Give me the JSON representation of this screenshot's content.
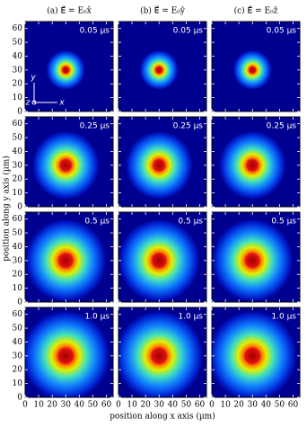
{
  "chart_data": {
    "type": "image-grid",
    "columns": [
      "(a) E⃗ = E₀x̂",
      "(b) E⃗ = E₀ŷ",
      "(c) E⃗ = E₀ẑ"
    ],
    "rows": [
      "0.05 µs",
      "0.25 µs",
      "0.5 µs",
      "1.0 µs"
    ],
    "xlabel": "position along x axis (µm)",
    "ylabel": "position along y axis (µm)",
    "inset_axes": [
      "y",
      "z",
      "x"
    ],
    "xlim": [
      0,
      65
    ],
    "ylim": [
      0,
      65
    ],
    "xticks": [
      0,
      10,
      20,
      30,
      40,
      50,
      60
    ],
    "yticks": [
      0,
      10,
      20,
      30,
      40,
      50,
      60
    ]
  }
}
